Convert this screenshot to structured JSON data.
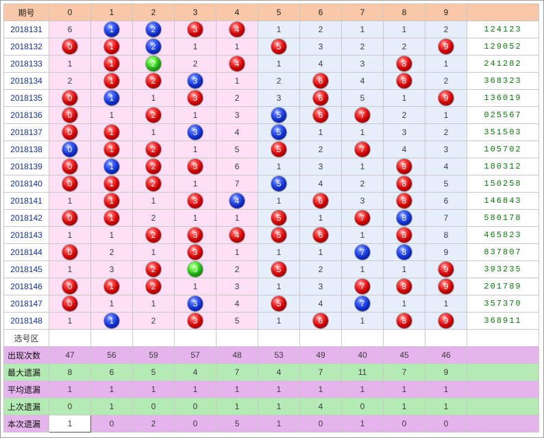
{
  "header": {
    "period_label": "期号",
    "digits": [
      "0",
      "1",
      "2",
      "3",
      "4",
      "5",
      "6",
      "7",
      "8",
      "9"
    ]
  },
  "colors": {
    "red": "#d00000",
    "blue": "#1030d0",
    "green": "#1eb010",
    "pink_bg": "#fde0f6",
    "blue_bg": "#e6eefc",
    "header_bg": "#f8c8a8",
    "result": "#0a7a0a"
  },
  "rows": [
    {
      "period": "2018131",
      "cells": [
        {
          "v": "6"
        },
        {
          "v": "1",
          "b": "blue"
        },
        {
          "v": "2",
          "b": "blue"
        },
        {
          "v": "3",
          "b": "red"
        },
        {
          "v": "4",
          "b": "red"
        },
        {
          "v": "1"
        },
        {
          "v": "2"
        },
        {
          "v": "1"
        },
        {
          "v": "1"
        },
        {
          "v": "2"
        }
      ],
      "result": "124123"
    },
    {
      "period": "2018132",
      "cells": [
        {
          "v": "0",
          "b": "red"
        },
        {
          "v": "1",
          "b": "red"
        },
        {
          "v": "2",
          "b": "blue"
        },
        {
          "v": "1"
        },
        {
          "v": "1"
        },
        {
          "v": "5",
          "b": "red"
        },
        {
          "v": "3"
        },
        {
          "v": "2"
        },
        {
          "v": "2"
        },
        {
          "v": "9",
          "b": "red"
        }
      ],
      "result": "129052"
    },
    {
      "period": "2018133",
      "cells": [
        {
          "v": "1"
        },
        {
          "v": "1",
          "b": "red"
        },
        {
          "v": "2",
          "b": "green"
        },
        {
          "v": "2"
        },
        {
          "v": "4",
          "b": "red"
        },
        {
          "v": "1"
        },
        {
          "v": "4"
        },
        {
          "v": "3"
        },
        {
          "v": "8",
          "b": "red"
        },
        {
          "v": "1"
        }
      ],
      "result": "241282"
    },
    {
      "period": "2018134",
      "cells": [
        {
          "v": "2"
        },
        {
          "v": "1",
          "b": "red"
        },
        {
          "v": "2",
          "b": "red"
        },
        {
          "v": "3",
          "b": "blue"
        },
        {
          "v": "1"
        },
        {
          "v": "2"
        },
        {
          "v": "6",
          "b": "red"
        },
        {
          "v": "4"
        },
        {
          "v": "8",
          "b": "red"
        },
        {
          "v": "2"
        }
      ],
      "result": "368323"
    },
    {
      "period": "2018135",
      "cells": [
        {
          "v": "0",
          "b": "red"
        },
        {
          "v": "1",
          "b": "blue"
        },
        {
          "v": "1"
        },
        {
          "v": "3",
          "b": "red"
        },
        {
          "v": "2"
        },
        {
          "v": "3"
        },
        {
          "v": "6",
          "b": "red"
        },
        {
          "v": "5"
        },
        {
          "v": "1"
        },
        {
          "v": "9",
          "b": "red"
        }
      ],
      "result": "136019"
    },
    {
      "period": "2018136",
      "cells": [
        {
          "v": "0",
          "b": "red"
        },
        {
          "v": "1"
        },
        {
          "v": "2",
          "b": "red"
        },
        {
          "v": "1"
        },
        {
          "v": "3"
        },
        {
          "v": "5",
          "b": "blue"
        },
        {
          "v": "6",
          "b": "red"
        },
        {
          "v": "7",
          "b": "red"
        },
        {
          "v": "2"
        },
        {
          "v": "1"
        }
      ],
      "result": "025567"
    },
    {
      "period": "2018137",
      "cells": [
        {
          "v": "0",
          "b": "red"
        },
        {
          "v": "1",
          "b": "red"
        },
        {
          "v": "1"
        },
        {
          "v": "3",
          "b": "blue"
        },
        {
          "v": "4"
        },
        {
          "v": "5",
          "b": "blue"
        },
        {
          "v": "1"
        },
        {
          "v": "1"
        },
        {
          "v": "3"
        },
        {
          "v": "2"
        }
      ],
      "result": "351503"
    },
    {
      "period": "2018138",
      "cells": [
        {
          "v": "0",
          "b": "blue"
        },
        {
          "v": "1",
          "b": "red"
        },
        {
          "v": "2",
          "b": "red"
        },
        {
          "v": "1"
        },
        {
          "v": "5"
        },
        {
          "v": "5",
          "b": "red"
        },
        {
          "v": "2"
        },
        {
          "v": "7",
          "b": "red"
        },
        {
          "v": "4"
        },
        {
          "v": "3"
        }
      ],
      "result": "105702"
    },
    {
      "period": "2018139",
      "cells": [
        {
          "v": "0",
          "b": "red"
        },
        {
          "v": "1",
          "b": "blue"
        },
        {
          "v": "2",
          "b": "red"
        },
        {
          "v": "3",
          "b": "red"
        },
        {
          "v": "6"
        },
        {
          "v": "1"
        },
        {
          "v": "3"
        },
        {
          "v": "1"
        },
        {
          "v": "8",
          "b": "red"
        },
        {
          "v": "4"
        }
      ],
      "result": "180312"
    },
    {
      "period": "2018140",
      "cells": [
        {
          "v": "0",
          "b": "red"
        },
        {
          "v": "1",
          "b": "red"
        },
        {
          "v": "2",
          "b": "red"
        },
        {
          "v": "1"
        },
        {
          "v": "7"
        },
        {
          "v": "5",
          "b": "blue"
        },
        {
          "v": "4"
        },
        {
          "v": "2"
        },
        {
          "v": "8",
          "b": "red"
        },
        {
          "v": "5"
        }
      ],
      "result": "150258"
    },
    {
      "period": "2018141",
      "cells": [
        {
          "v": "1"
        },
        {
          "v": "1",
          "b": "red"
        },
        {
          "v": "1"
        },
        {
          "v": "3",
          "b": "red"
        },
        {
          "v": "4",
          "b": "blue"
        },
        {
          "v": "1"
        },
        {
          "v": "6",
          "b": "red"
        },
        {
          "v": "3"
        },
        {
          "v": "8",
          "b": "red"
        },
        {
          "v": "6"
        }
      ],
      "result": "146843"
    },
    {
      "period": "2018142",
      "cells": [
        {
          "v": "0",
          "b": "red"
        },
        {
          "v": "1",
          "b": "red"
        },
        {
          "v": "2"
        },
        {
          "v": "1"
        },
        {
          "v": "1"
        },
        {
          "v": "5",
          "b": "red"
        },
        {
          "v": "1"
        },
        {
          "v": "7",
          "b": "red"
        },
        {
          "v": "8",
          "b": "blue"
        },
        {
          "v": "7"
        }
      ],
      "result": "580178"
    },
    {
      "period": "2018143",
      "cells": [
        {
          "v": "1"
        },
        {
          "v": "1"
        },
        {
          "v": "2",
          "b": "red"
        },
        {
          "v": "3",
          "b": "red"
        },
        {
          "v": "4",
          "b": "red"
        },
        {
          "v": "5",
          "b": "red"
        },
        {
          "v": "6",
          "b": "red"
        },
        {
          "v": "1"
        },
        {
          "v": "8",
          "b": "red"
        },
        {
          "v": "8"
        }
      ],
      "result": "465823"
    },
    {
      "period": "2018144",
      "cells": [
        {
          "v": "0",
          "b": "red"
        },
        {
          "v": "2"
        },
        {
          "v": "1"
        },
        {
          "v": "3",
          "b": "red"
        },
        {
          "v": "1"
        },
        {
          "v": "1"
        },
        {
          "v": "1"
        },
        {
          "v": "7",
          "b": "blue"
        },
        {
          "v": "8",
          "b": "blue"
        },
        {
          "v": "9"
        }
      ],
      "result": "837807"
    },
    {
      "period": "2018145",
      "cells": [
        {
          "v": "1"
        },
        {
          "v": "3"
        },
        {
          "v": "2",
          "b": "red"
        },
        {
          "v": "3",
          "b": "green"
        },
        {
          "v": "2"
        },
        {
          "v": "5",
          "b": "red"
        },
        {
          "v": "2"
        },
        {
          "v": "1"
        },
        {
          "v": "1"
        },
        {
          "v": "9",
          "b": "red"
        }
      ],
      "result": "393235"
    },
    {
      "period": "2018146",
      "cells": [
        {
          "v": "0",
          "b": "red"
        },
        {
          "v": "1",
          "b": "red"
        },
        {
          "v": "2",
          "b": "red"
        },
        {
          "v": "1"
        },
        {
          "v": "3"
        },
        {
          "v": "1"
        },
        {
          "v": "3"
        },
        {
          "v": "7",
          "b": "red"
        },
        {
          "v": "8",
          "b": "red"
        },
        {
          "v": "9",
          "b": "red"
        }
      ],
      "result": "201789"
    },
    {
      "period": "2018147",
      "cells": [
        {
          "v": "0",
          "b": "red"
        },
        {
          "v": "1"
        },
        {
          "v": "1"
        },
        {
          "v": "3",
          "b": "blue"
        },
        {
          "v": "4"
        },
        {
          "v": "5",
          "b": "red"
        },
        {
          "v": "4"
        },
        {
          "v": "7",
          "b": "blue"
        },
        {
          "v": "1"
        },
        {
          "v": "1"
        }
      ],
      "result": "357370"
    },
    {
      "period": "2018148",
      "cells": [
        {
          "v": "1"
        },
        {
          "v": "1",
          "b": "blue"
        },
        {
          "v": "2"
        },
        {
          "v": "3",
          "b": "red"
        },
        {
          "v": "5"
        },
        {
          "v": "1"
        },
        {
          "v": "6",
          "b": "red"
        },
        {
          "v": "1"
        },
        {
          "v": "8",
          "b": "red"
        },
        {
          "v": "9",
          "b": "red"
        }
      ],
      "result": "368911"
    }
  ],
  "select_label": "选号区",
  "stats": [
    {
      "key": "count",
      "label": "出现次数",
      "values": [
        "47",
        "56",
        "59",
        "57",
        "48",
        "53",
        "49",
        "40",
        "45",
        "46"
      ]
    },
    {
      "key": "max",
      "label": "最大遗漏",
      "values": [
        "8",
        "6",
        "5",
        "4",
        "7",
        "4",
        "7",
        "11",
        "7",
        "9"
      ]
    },
    {
      "key": "avg",
      "label": "平均遗漏",
      "values": [
        "1",
        "1",
        "1",
        "1",
        "1",
        "1",
        "1",
        "1",
        "1",
        "1"
      ]
    },
    {
      "key": "last",
      "label": "上次遗漏",
      "values": [
        "0",
        "1",
        "0",
        "0",
        "1",
        "1",
        "4",
        "0",
        "1",
        "1"
      ]
    },
    {
      "key": "current",
      "label": "本次遗漏",
      "values": [
        "1",
        "0",
        "2",
        "0",
        "5",
        "1",
        "0",
        "1",
        "0",
        "0"
      ]
    }
  ]
}
